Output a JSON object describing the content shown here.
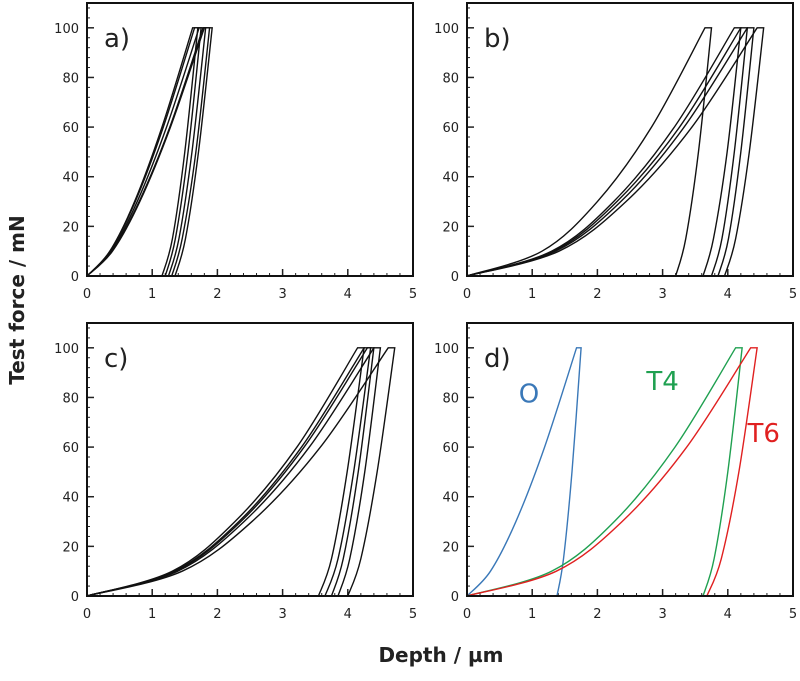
{
  "chart_data": {
    "type": "line",
    "xlabel": "Depth / µm",
    "ylabel": "Test force / mN",
    "xlim": [
      0,
      5
    ],
    "ylim": [
      0,
      110
    ],
    "x_ticks": [
      "0",
      "1",
      "2",
      "3",
      "4",
      "5"
    ],
    "y_ticks": [
      "0",
      "20",
      "40",
      "60",
      "80",
      "100"
    ],
    "grid": false,
    "panels": [
      {
        "label": "a)",
        "series": [
          {
            "color": "#111111",
            "load": [
              [
                0,
                0
              ],
              [
                0.35,
                10
              ],
              [
                0.73,
                30
              ],
              [
                1.15,
                60
              ],
              [
                1.62,
                100
              ]
            ],
            "unload": [
              [
                1.7,
                100
              ],
              [
                1.5,
                50
              ],
              [
                1.31,
                15
              ],
              [
                1.15,
                0
              ]
            ]
          },
          {
            "color": "#111111",
            "load": [
              [
                0,
                0
              ],
              [
                0.355,
                10
              ],
              [
                0.74,
                30
              ],
              [
                1.17,
                60
              ],
              [
                1.65,
                100
              ]
            ],
            "unload": [
              [
                1.75,
                100
              ],
              [
                1.55,
                50
              ],
              [
                1.355,
                15
              ],
              [
                1.2,
                0
              ]
            ]
          },
          {
            "color": "#111111",
            "load": [
              [
                0,
                0
              ],
              [
                0.37,
                10
              ],
              [
                0.77,
                30
              ],
              [
                1.22,
                60
              ],
              [
                1.72,
                100
              ]
            ],
            "unload": [
              [
                1.82,
                100
              ],
              [
                1.61,
                50
              ],
              [
                1.41,
                15
              ],
              [
                1.25,
                0
              ]
            ]
          },
          {
            "color": "#111111",
            "load": [
              [
                0,
                0
              ],
              [
                0.38,
                10
              ],
              [
                0.8,
                30
              ],
              [
                1.27,
                60
              ],
              [
                1.78,
                100
              ]
            ],
            "unload": [
              [
                1.88,
                100
              ],
              [
                1.67,
                50
              ],
              [
                1.46,
                15
              ],
              [
                1.3,
                0
              ]
            ]
          },
          {
            "color": "#111111",
            "load": [
              [
                0,
                0
              ],
              [
                0.39,
                10
              ],
              [
                0.81,
                30
              ],
              [
                1.28,
                60
              ],
              [
                1.8,
                100
              ]
            ],
            "unload": [
              [
                1.92,
                100
              ],
              [
                1.71,
                50
              ],
              [
                1.51,
                15
              ],
              [
                1.35,
                0
              ]
            ]
          }
        ]
      },
      {
        "label": "b)",
        "series": [
          {
            "color": "#111111",
            "load": [
              [
                0,
                0
              ],
              [
                1.15,
                10
              ],
              [
                2.0,
                30
              ],
              [
                2.83,
                60
              ],
              [
                3.65,
                100
              ]
            ],
            "unload": [
              [
                3.75,
                100
              ],
              [
                3.55,
                50
              ],
              [
                3.355,
                15
              ],
              [
                3.2,
                0
              ]
            ]
          },
          {
            "color": "#111111",
            "load": [
              [
                0,
                0
              ],
              [
                1.3,
                10
              ],
              [
                2.25,
                30
              ],
              [
                3.18,
                60
              ],
              [
                4.1,
                100
              ]
            ],
            "unload": [
              [
                4.2,
                100
              ],
              [
                3.99,
                50
              ],
              [
                3.78,
                15
              ],
              [
                3.62,
                0
              ]
            ]
          },
          {
            "color": "#111111",
            "load": [
              [
                0,
                0
              ],
              [
                1.33,
                10
              ],
              [
                2.3,
                30
              ],
              [
                3.26,
                60
              ],
              [
                4.2,
                100
              ]
            ],
            "unload": [
              [
                4.3,
                100
              ],
              [
                4.1,
                50
              ],
              [
                3.91,
                15
              ],
              [
                3.75,
                0
              ]
            ]
          },
          {
            "color": "#111111",
            "load": [
              [
                0,
                0
              ],
              [
                1.36,
                10
              ],
              [
                2.36,
                30
              ],
              [
                3.33,
                60
              ],
              [
                4.3,
                100
              ]
            ],
            "unload": [
              [
                4.4,
                100
              ],
              [
                4.2,
                50
              ],
              [
                4.01,
                15
              ],
              [
                3.85,
                0
              ]
            ]
          },
          {
            "color": "#111111",
            "load": [
              [
                0,
                0
              ],
              [
                1.41,
                10
              ],
              [
                2.44,
                30
              ],
              [
                3.45,
                60
              ],
              [
                4.45,
                100
              ]
            ],
            "unload": [
              [
                4.55,
                100
              ],
              [
                4.33,
                50
              ],
              [
                4.12,
                15
              ],
              [
                3.95,
                0
              ]
            ]
          }
        ]
      },
      {
        "label": "c)",
        "series": [
          {
            "color": "#111111",
            "load": [
              [
                0,
                0
              ],
              [
                1.31,
                10
              ],
              [
                2.27,
                30
              ],
              [
                3.22,
                60
              ],
              [
                4.15,
                100
              ]
            ],
            "unload": [
              [
                4.25,
                100
              ],
              [
                3.99,
                50
              ],
              [
                3.75,
                15
              ],
              [
                3.55,
                0
              ]
            ]
          },
          {
            "color": "#111111",
            "load": [
              [
                0,
                0
              ],
              [
                1.34,
                10
              ],
              [
                2.33,
                30
              ],
              [
                3.29,
                60
              ],
              [
                4.25,
                100
              ]
            ],
            "unload": [
              [
                4.35,
                100
              ],
              [
                4.09,
                50
              ],
              [
                3.85,
                15
              ],
              [
                3.65,
                0
              ]
            ]
          },
          {
            "color": "#111111",
            "load": [
              [
                0,
                0
              ],
              [
                1.36,
                10
              ],
              [
                2.36,
                30
              ],
              [
                3.33,
                60
              ],
              [
                4.3,
                100
              ]
            ],
            "unload": [
              [
                4.4,
                100
              ],
              [
                4.16,
                50
              ],
              [
                3.93,
                15
              ],
              [
                3.75,
                0
              ]
            ]
          },
          {
            "color": "#111111",
            "load": [
              [
                0,
                0
              ],
              [
                1.39,
                10
              ],
              [
                2.41,
                30
              ],
              [
                3.41,
                60
              ],
              [
                4.4,
                100
              ]
            ],
            "unload": [
              [
                4.5,
                100
              ],
              [
                4.26,
                50
              ],
              [
                4.03,
                15
              ],
              [
                3.85,
                0
              ]
            ]
          },
          {
            "color": "#111111",
            "load": [
              [
                0,
                0
              ],
              [
                1.46,
                10
              ],
              [
                2.53,
                30
              ],
              [
                3.58,
                60
              ],
              [
                4.62,
                100
              ]
            ],
            "unload": [
              [
                4.72,
                100
              ],
              [
                4.45,
                50
              ],
              [
                4.2,
                15
              ],
              [
                4.0,
                0
              ]
            ]
          }
        ]
      },
      {
        "label": "d)",
        "series": [
          {
            "name": "O",
            "color": "#3a78b8",
            "load": [
              [
                0,
                0
              ],
              [
                0.36,
                10
              ],
              [
                0.75,
                30
              ],
              [
                1.19,
                60
              ],
              [
                1.68,
                100
              ]
            ],
            "unload": [
              [
                1.75,
                100
              ],
              [
                1.61,
                50
              ],
              [
                1.48,
                15
              ],
              [
                1.38,
                0
              ]
            ]
          },
          {
            "name": "T4",
            "color": "#1fa050",
            "load": [
              [
                0,
                0
              ],
              [
                1.3,
                10
              ],
              [
                2.26,
                30
              ],
              [
                3.19,
                60
              ],
              [
                4.12,
                100
              ]
            ],
            "unload": [
              [
                4.22,
                100
              ],
              [
                4.0,
                50
              ],
              [
                3.79,
                15
              ],
              [
                3.62,
                0
              ]
            ]
          },
          {
            "name": "T6",
            "color": "#e02020",
            "load": [
              [
                0,
                0
              ],
              [
                1.37,
                10
              ],
              [
                2.38,
                30
              ],
              [
                3.37,
                60
              ],
              [
                4.35,
                100
              ]
            ],
            "unload": [
              [
                4.45,
                100
              ],
              [
                4.17,
                50
              ],
              [
                3.9,
                15
              ],
              [
                3.68,
                0
              ]
            ]
          }
        ]
      }
    ]
  }
}
